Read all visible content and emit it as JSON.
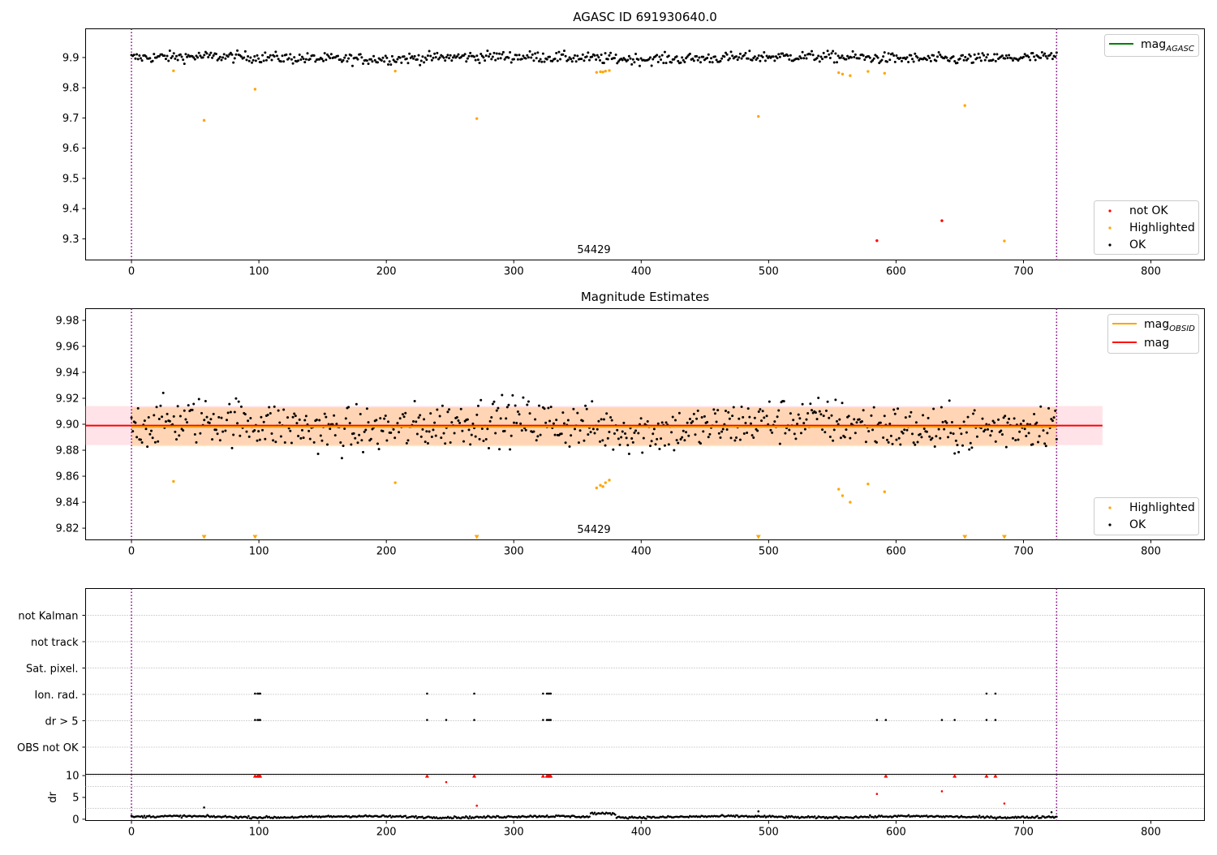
{
  "chart_data": [
    {
      "type": "scatter",
      "title": "AGASC ID 691930640.0",
      "obsid_annotation": "54429",
      "xlim": [
        -36,
        842
      ],
      "ylim": [
        9.23,
        9.995
      ],
      "xticks": [
        0,
        100,
        200,
        300,
        400,
        500,
        600,
        700,
        800
      ],
      "yticks": [
        9.3,
        9.4,
        9.5,
        9.6,
        9.7,
        9.8,
        9.9
      ],
      "yticklabels": [
        "9.3",
        "9.4",
        "9.5",
        "9.6",
        "9.7",
        "9.8",
        "9.9"
      ],
      "vlines": [
        0,
        726
      ],
      "legend_top": {
        "label": "mag",
        "subscript": "AGASC",
        "color": "#008000",
        "position": "top-right"
      },
      "legend_bottom": [
        {
          "label": "not OK",
          "color": "#ff0000"
        },
        {
          "label": "Highlighted",
          "color": "#ffa500"
        },
        {
          "label": "OK",
          "color": "#000000"
        }
      ],
      "series": [
        {
          "name": "OK",
          "color": "#000000",
          "x_range": [
            0,
            726
          ],
          "n": 700,
          "center": 9.899,
          "spread": 0.012
        },
        {
          "name": "Highlighted",
          "color": "#ffa500",
          "points": [
            [
              33,
              9.856
            ],
            [
              57,
              9.692
            ],
            [
              97,
              9.795
            ],
            [
              207,
              9.855
            ],
            [
              271,
              9.698
            ],
            [
              365,
              9.851
            ],
            [
              368,
              9.853
            ],
            [
              370,
              9.852
            ],
            [
              372,
              9.855
            ],
            [
              375,
              9.857
            ],
            [
              492,
              9.705
            ],
            [
              555,
              9.85
            ],
            [
              558,
              9.845
            ],
            [
              564,
              9.84
            ],
            [
              578,
              9.854
            ],
            [
              591,
              9.848
            ],
            [
              654,
              9.741
            ],
            [
              685,
              9.293
            ]
          ]
        },
        {
          "name": "not OK",
          "color": "#ff0000",
          "points": [
            [
              585,
              9.294
            ],
            [
              636,
              9.36
            ]
          ]
        }
      ]
    },
    {
      "type": "scatter",
      "title": "Magnitude Estimates",
      "obsid_annotation": "54429",
      "xlim": [
        -36,
        842
      ],
      "ylim": [
        9.811,
        9.989
      ],
      "xticks": [
        0,
        100,
        200,
        300,
        400,
        500,
        600,
        700,
        800
      ],
      "yticks": [
        9.82,
        9.84,
        9.86,
        9.88,
        9.9,
        9.92,
        9.94,
        9.96,
        9.98
      ],
      "yticklabels": [
        "9.82",
        "9.84",
        "9.86",
        "9.88",
        "9.90",
        "9.92",
        "9.94",
        "9.96",
        "9.98"
      ],
      "vlines": [
        0,
        726
      ],
      "mag": 9.899,
      "mag_obsid": 9.898,
      "mag_band": [
        9.884,
        9.914
      ],
      "mag_obsid_band": [
        9.883,
        9.913
      ],
      "legend_top": [
        {
          "label": "mag",
          "subscript": "OBSID",
          "color": "#ffa500"
        },
        {
          "label": "mag",
          "subscript": "",
          "color": "#ff0000"
        }
      ],
      "legend_bottom": [
        {
          "label": "Highlighted",
          "color": "#ffa500"
        },
        {
          "label": "OK",
          "color": "#000000"
        }
      ],
      "series": [
        {
          "name": "OK",
          "color": "#000000",
          "x_range": [
            0,
            726
          ],
          "n": 700,
          "center": 9.899,
          "spread": 0.012
        },
        {
          "name": "Highlighted",
          "color": "#ffa500",
          "points": [
            [
              33,
              9.856
            ],
            [
              207,
              9.855
            ],
            [
              365,
              9.851
            ],
            [
              368,
              9.853
            ],
            [
              370,
              9.852
            ],
            [
              372,
              9.855
            ],
            [
              375,
              9.857
            ],
            [
              555,
              9.85
            ],
            [
              558,
              9.845
            ],
            [
              564,
              9.84
            ],
            [
              578,
              9.854
            ],
            [
              591,
              9.848
            ]
          ]
        },
        {
          "name": "Highlighted (off-scale)",
          "color": "#ffa500",
          "marker": "triangle-down",
          "x": [
            57,
            97,
            271,
            492,
            654,
            685
          ]
        }
      ]
    },
    {
      "type": "scatter",
      "title": "",
      "xlim": [
        -36,
        842
      ],
      "flag_rows": [
        "not Kalman",
        "not track",
        "Sat. pixel.",
        "Ion. rad.",
        "dr > 5",
        "OBS not OK"
      ],
      "vlines": [
        0,
        726
      ],
      "flag_points": {
        "Ion. rad.": [
          97,
          99,
          100,
          101,
          232,
          269,
          323,
          326,
          327,
          328,
          329,
          671,
          678
        ],
        "dr > 5": [
          97,
          99,
          100,
          101,
          232,
          247,
          269,
          323,
          326,
          327,
          328,
          329,
          585,
          592,
          636,
          646,
          671,
          678
        ]
      }
    },
    {
      "type": "scatter",
      "ylabel": "dr",
      "xlim": [
        -36,
        842
      ],
      "ylim": [
        -0.3,
        10.3
      ],
      "yticks": [
        0,
        5,
        10
      ],
      "yticklabels": [
        "0",
        "5",
        "10"
      ],
      "xticks": [
        0,
        100,
        200,
        300,
        400,
        500,
        600,
        700,
        800
      ],
      "vlines": [
        0,
        726
      ],
      "series": [
        {
          "name": "dr",
          "color": "#000000",
          "x_range": [
            0,
            726
          ],
          "n": 720,
          "center": 0.55,
          "spread": 0.3
        },
        {
          "name": "dr outliers",
          "color": "#000000",
          "points": [
            [
              57,
              2.7
            ],
            [
              492,
              1.8
            ],
            [
              722,
              1.6
            ]
          ]
        },
        {
          "name": "dr red",
          "color": "#ff0000",
          "points": [
            [
              247,
              8.5
            ],
            [
              271,
              3.1
            ],
            [
              585,
              5.8
            ],
            [
              636,
              6.4
            ],
            [
              685,
              3.6
            ]
          ]
        },
        {
          "name": "dr clipped",
          "color": "#ff0000",
          "marker": "triangle-up",
          "x": [
            97,
            99,
            100,
            101,
            232,
            269,
            323,
            326,
            327,
            328,
            329,
            592,
            646,
            671,
            678
          ]
        }
      ]
    }
  ]
}
